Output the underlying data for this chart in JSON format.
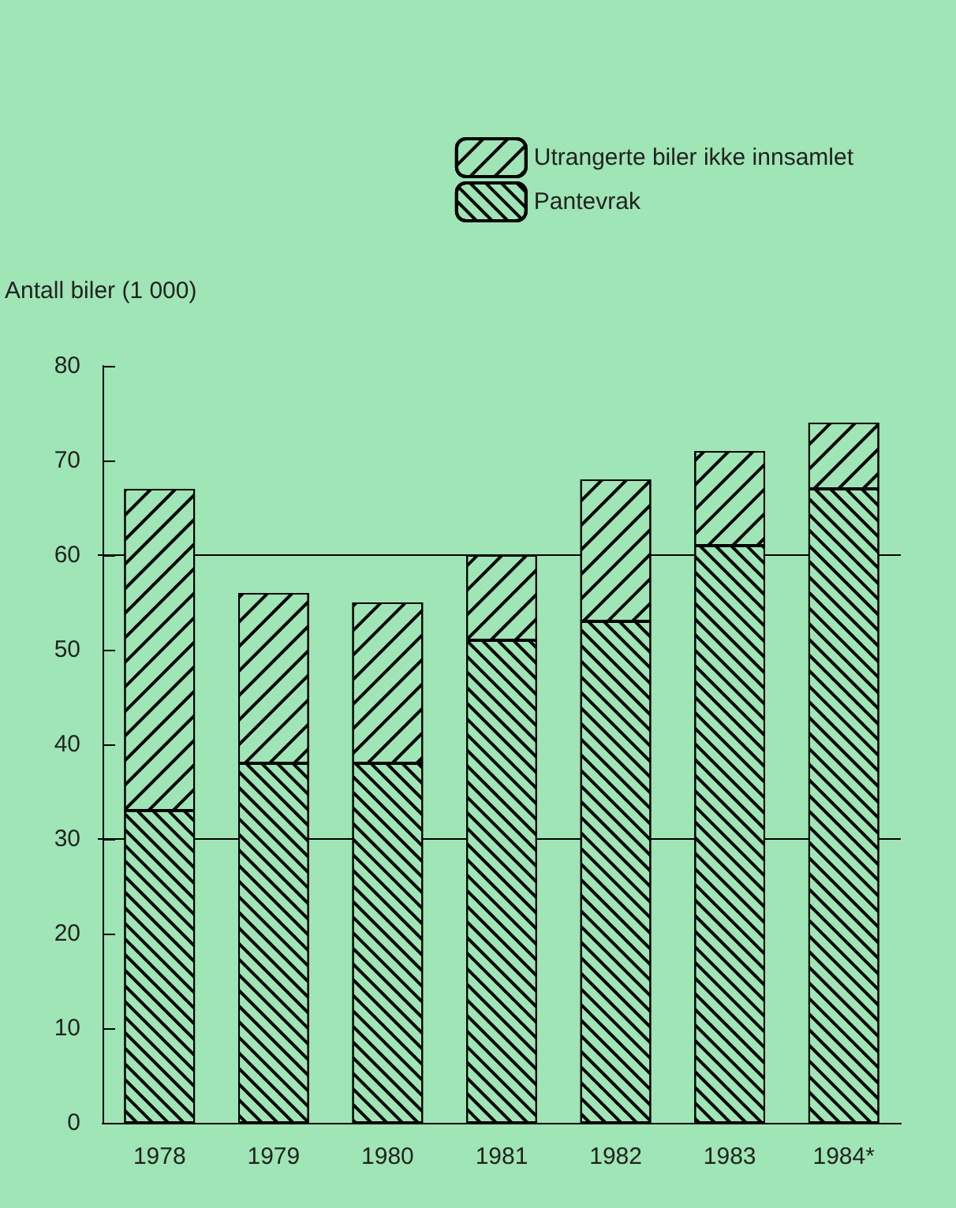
{
  "chart_data": {
    "type": "bar",
    "stacked": true,
    "ylabel": "Antall biler (1 000)",
    "categories": [
      "1978",
      "1979",
      "1980",
      "1981",
      "1982",
      "1983",
      "1984*"
    ],
    "series": [
      {
        "name": "Pantevrak",
        "color": "#9fe5b5",
        "values": [
          33,
          38,
          38,
          51,
          53,
          61,
          67
        ]
      },
      {
        "name": "Utrangerte biler ikke innsamlet",
        "color": "#9fe5b5",
        "values": [
          34,
          18,
          17,
          9,
          15,
          10,
          7
        ]
      }
    ],
    "ylim": [
      0,
      80
    ],
    "yticks": [
      0,
      10,
      20,
      30,
      40,
      50,
      60,
      70,
      80
    ],
    "grid": false,
    "ref_lines": [
      {
        "axis": "y",
        "value": 30,
        "color": "#000000"
      },
      {
        "axis": "y",
        "value": 60,
        "color": "#000000"
      }
    ],
    "legend": "top right"
  }
}
